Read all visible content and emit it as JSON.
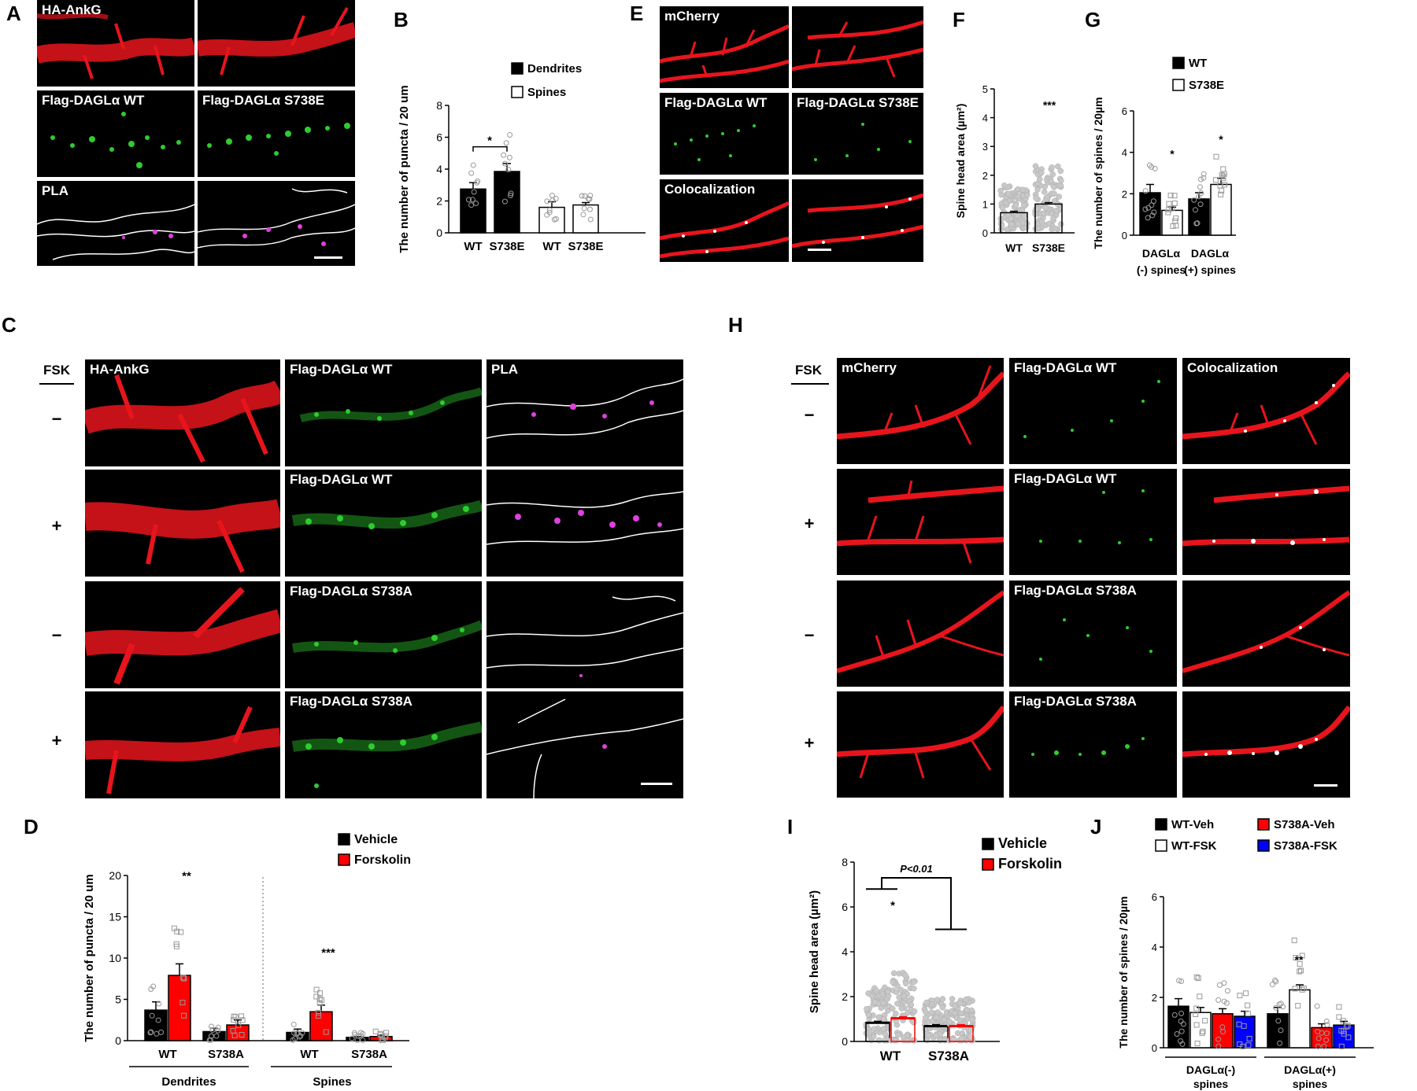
{
  "panels": {
    "A": {
      "letter": "A",
      "labels": [
        "HA-AnkG",
        "Flag-DAGLα WT",
        "Flag-DAGLα S738E",
        "PLA"
      ]
    },
    "C": {
      "letter": "C",
      "fsk": "FSK",
      "signs": [
        "−",
        "+",
        "−",
        "+"
      ],
      "labels": [
        "HA-AnkG",
        "Flag-DAGLα WT",
        "PLA",
        "Flag-DAGLα WT",
        "Flag-DAGLα S738A",
        "Flag-DAGLα S738A"
      ]
    },
    "E": {
      "letter": "E",
      "labels": [
        "mCherry",
        "Flag-DAGLα WT",
        "Flag-DAGLα S738E",
        "Colocalization"
      ]
    },
    "H": {
      "letter": "H",
      "fsk": "FSK",
      "signs": [
        "−",
        "+",
        "−",
        "+"
      ],
      "labels": [
        "mCherry",
        "Flag-DAGLα WT",
        "Colocalization",
        "Flag-DAGLα WT",
        "Flag-DAGLα S738A",
        "Flag-DAGLα S738A"
      ]
    }
  },
  "colors": {
    "red_channel": "#e8141c",
    "green_channel": "#2ecc2e",
    "magenta": "#e040e0",
    "black_bar": "#000000",
    "red_bar": "#ff0000",
    "blue_bar": "#0000ff",
    "grey_points": "#b0b0b0"
  },
  "chart_data": [
    {
      "id": "B",
      "letter": "B",
      "type": "bar",
      "ylabel": "The number of puncta / 20 um",
      "ylim": [
        0,
        8
      ],
      "yticks": [
        0,
        2,
        4,
        6,
        8
      ],
      "categories": [
        "WT",
        "S738E",
        "WT",
        "S738E"
      ],
      "fills": [
        "black",
        "black",
        "white",
        "white"
      ],
      "values": [
        2.75,
        3.85,
        1.6,
        1.75
      ],
      "errors": [
        0.4,
        0.5,
        0.35,
        0.15
      ],
      "legend": [
        "Dendrites",
        "Spines"
      ],
      "significance": "*"
    },
    {
      "id": "F",
      "letter": "F",
      "type": "bar",
      "ylabel": "Spine head area (µm²)",
      "ylim": [
        0,
        5
      ],
      "yticks": [
        0,
        1,
        2,
        3,
        4,
        5
      ],
      "categories": [
        "WT",
        "S738E"
      ],
      "values": [
        0.7,
        1.0
      ],
      "errors": [
        0.05,
        0.05
      ],
      "significance": "***"
    },
    {
      "id": "G",
      "letter": "G",
      "type": "bar",
      "ylabel": "The number of spines / 20µm",
      "ylim": [
        0,
        6
      ],
      "yticks": [
        0,
        2,
        4,
        6
      ],
      "groups": [
        "DAGLα (-) spines",
        "DAGLα (+) spines"
      ],
      "group_lines": [
        [
          "DAGLα",
          "(-) spines"
        ],
        [
          "DAGLα",
          "(+) spines"
        ]
      ],
      "series": [
        {
          "name": "WT",
          "values": [
            2.05,
            1.75
          ],
          "errors": [
            0.4,
            0.3
          ]
        },
        {
          "name": "S738E",
          "values": [
            1.2,
            2.45
          ],
          "errors": [
            0.15,
            0.3
          ]
        }
      ],
      "significance": [
        "*",
        "*"
      ]
    },
    {
      "id": "D",
      "letter": "D",
      "type": "bar",
      "ylabel": "The number of puncta / 20 um",
      "ylim": [
        0,
        20
      ],
      "yticks": [
        0,
        5,
        10,
        15,
        20
      ],
      "groups": [
        "Dendrites",
        "Spines"
      ],
      "categories": [
        "WT",
        "S738A",
        "WT",
        "S738A"
      ],
      "series": [
        {
          "name": "Vehicle",
          "values": [
            3.7,
            1.1,
            1.0,
            0.4
          ],
          "errors": [
            1.0,
            0.4,
            0.4,
            0.1
          ]
        },
        {
          "name": "Forskolin",
          "values": [
            7.9,
            1.9,
            3.5,
            0.5
          ],
          "errors": [
            1.4,
            0.6,
            0.8,
            0.15
          ]
        }
      ],
      "significance": [
        "**",
        "***"
      ]
    },
    {
      "id": "I",
      "letter": "I",
      "type": "bar",
      "ylabel": "Spine head area (µm²)",
      "ylim": [
        0,
        8
      ],
      "yticks": [
        0,
        2,
        4,
        6,
        8
      ],
      "categories": [
        "WT",
        "S738A"
      ],
      "series": [
        {
          "name": "Vehicle",
          "values": [
            0.85,
            0.7
          ],
          "errors": [
            0.05,
            0.05
          ]
        },
        {
          "name": "Forskolin",
          "values": [
            1.05,
            0.7
          ],
          "errors": [
            0.05,
            0.05
          ]
        }
      ],
      "annotation": "P<0.01",
      "significance": "*"
    },
    {
      "id": "J",
      "letter": "J",
      "type": "bar",
      "ylabel": "The number of spines / 20µm",
      "ylim": [
        0,
        6
      ],
      "yticks": [
        0,
        2,
        4,
        6
      ],
      "groups": [
        "DAGLα(-) spines",
        "DAGLα(+) spines"
      ],
      "group_lines": [
        [
          "DAGLα(-)",
          "spines"
        ],
        [
          "DAGLα(+)",
          "spines"
        ]
      ],
      "series": [
        {
          "name": "WT-Veh",
          "values": [
            1.65,
            1.35
          ],
          "errors": [
            0.3,
            0.25
          ]
        },
        {
          "name": "WT-FSK",
          "values": [
            1.4,
            2.3
          ],
          "errors": [
            0.2,
            0.2
          ]
        },
        {
          "name": "S738A-Veh",
          "values": [
            1.35,
            0.8
          ],
          "errors": [
            0.2,
            0.15
          ]
        },
        {
          "name": "S738A-FSK",
          "values": [
            1.25,
            0.9
          ],
          "errors": [
            0.2,
            0.15
          ]
        }
      ],
      "significance": "**"
    }
  ]
}
